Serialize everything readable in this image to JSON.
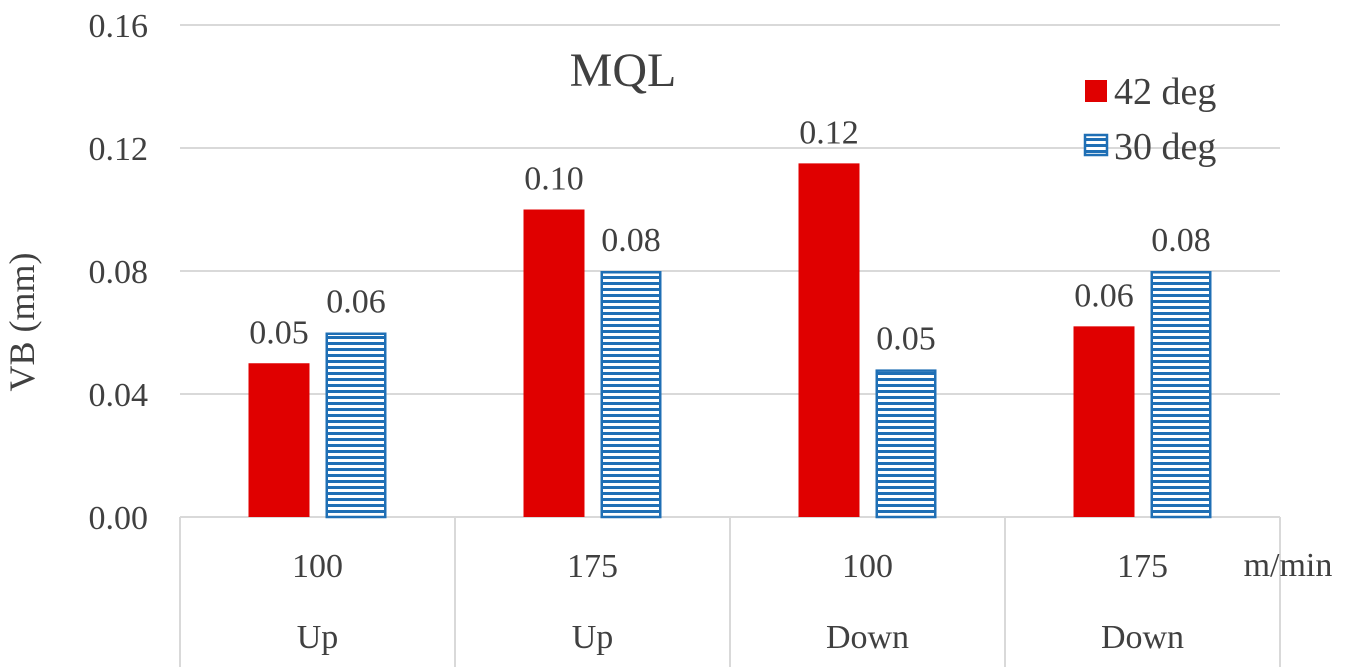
{
  "chart_data": {
    "type": "bar",
    "title": "MQL",
    "ylabel": "VB (mm)",
    "x_unit_label": "m/min",
    "ylim": [
      0,
      0.16
    ],
    "yticks": [
      "0.00",
      "0.04",
      "0.08",
      "0.12",
      "0.16"
    ],
    "ytick_values": [
      0,
      0.04,
      0.08,
      0.12,
      0.16
    ],
    "grid": true,
    "legend_position": "top-right",
    "categories": [
      {
        "speed": "100",
        "direction": "Up"
      },
      {
        "speed": "175",
        "direction": "Up"
      },
      {
        "speed": "100",
        "direction": "Down"
      },
      {
        "speed": "175",
        "direction": "Down"
      }
    ],
    "series": [
      {
        "name": "42 deg",
        "color": "#e00000",
        "pattern": "solid",
        "values": [
          0.05,
          0.1,
          0.115,
          0.062
        ],
        "labels": [
          "0.05",
          "0.10",
          "0.12",
          "0.06"
        ]
      },
      {
        "name": "30 deg",
        "color": "#1f6fb5",
        "pattern": "horizontal-stripes",
        "values": [
          0.06,
          0.08,
          0.048,
          0.08
        ],
        "labels": [
          "0.06",
          "0.08",
          "0.05",
          "0.08"
        ]
      }
    ]
  }
}
